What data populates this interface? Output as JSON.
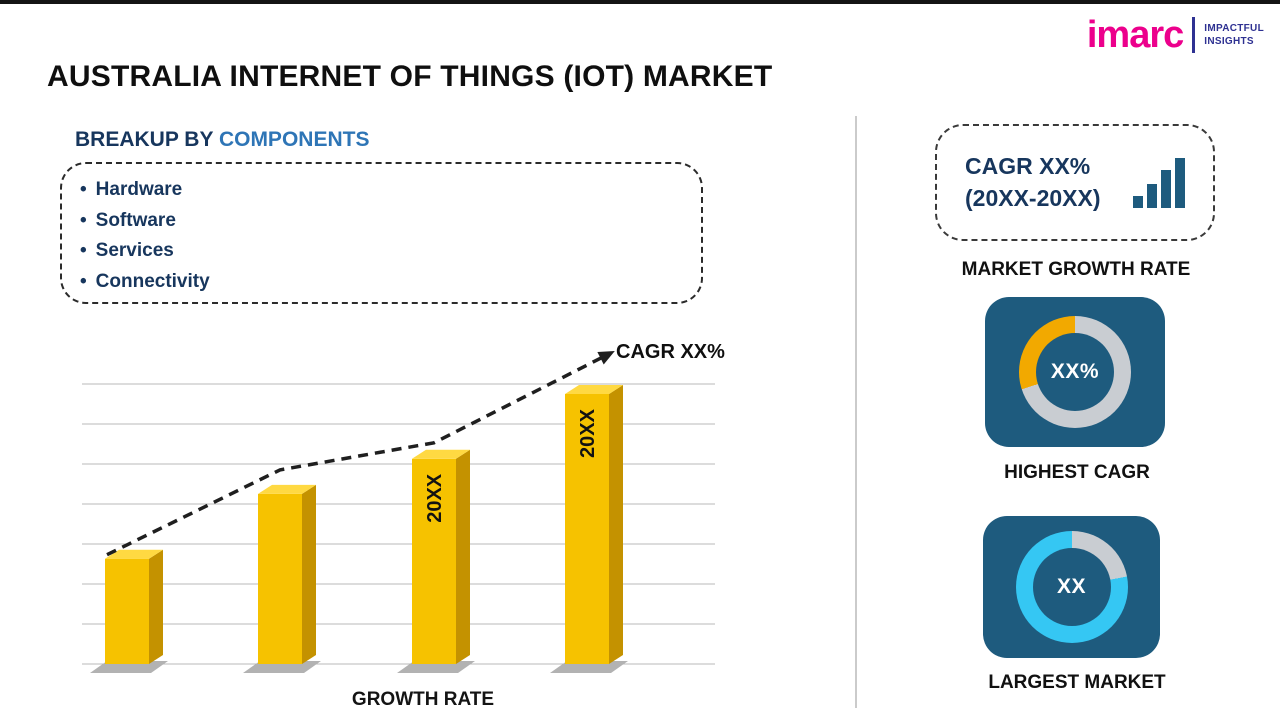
{
  "logo": {
    "brand": "imarc",
    "tagline1": "IMPACTFUL",
    "tagline2": "INSIGHTS"
  },
  "title": "AUSTRALIA INTERNET OF THINGS (IOT) MARKET",
  "breakup": {
    "heading_prefix": "BREAKUP BY ",
    "heading_highlight": "COMPONENTS",
    "items": [
      "Hardware",
      "Software",
      "Services",
      "Connectivity"
    ]
  },
  "chart_data": [
    {
      "type": "bar",
      "title": "",
      "categories": [
        "",
        "",
        "20XX",
        "20XX"
      ],
      "values": [
        39,
        63,
        76,
        100
      ],
      "bar_labels": [
        "",
        "",
        "20XX",
        "20XX"
      ],
      "ylim": [
        0,
        100
      ],
      "value_note": "relative heights, no numeric axis shown",
      "trend_label": "CAGR XX%",
      "xlabel": "GROWTH RATE",
      "bar_color": "#F6C200",
      "bar_side_color": "#C49200",
      "bar_top_color": "#FFD942",
      "trend_style": "dashed-arrow",
      "grid": true
    },
    {
      "type": "donut",
      "label": "HIGHEST CAGR",
      "center_text": "XX%",
      "accent_color": "#F2A900",
      "accent_start": 70,
      "accent_percent": 30
    },
    {
      "type": "donut",
      "label": "LARGEST MARKET",
      "center_text": "XX",
      "accent_color": "#35C7F3",
      "accent_start": 22,
      "accent_percent": 78
    }
  ],
  "sidebar": {
    "cagr_box": {
      "line1": "CAGR XX%",
      "line2": "(20XX-20XX)"
    },
    "market_growth_rate_label": "MARKET GROWTH RATE"
  },
  "colors": {
    "navy_text": "#17365d",
    "heading_blue": "#2e75b6",
    "tile_bg": "#1e5b7e",
    "ring_gray": "#c9cdd2",
    "brand_pink": "#EC008C",
    "brand_navy": "#2E3192",
    "grid_line": "#b9b9b9",
    "trend": "#1f1f1f"
  }
}
